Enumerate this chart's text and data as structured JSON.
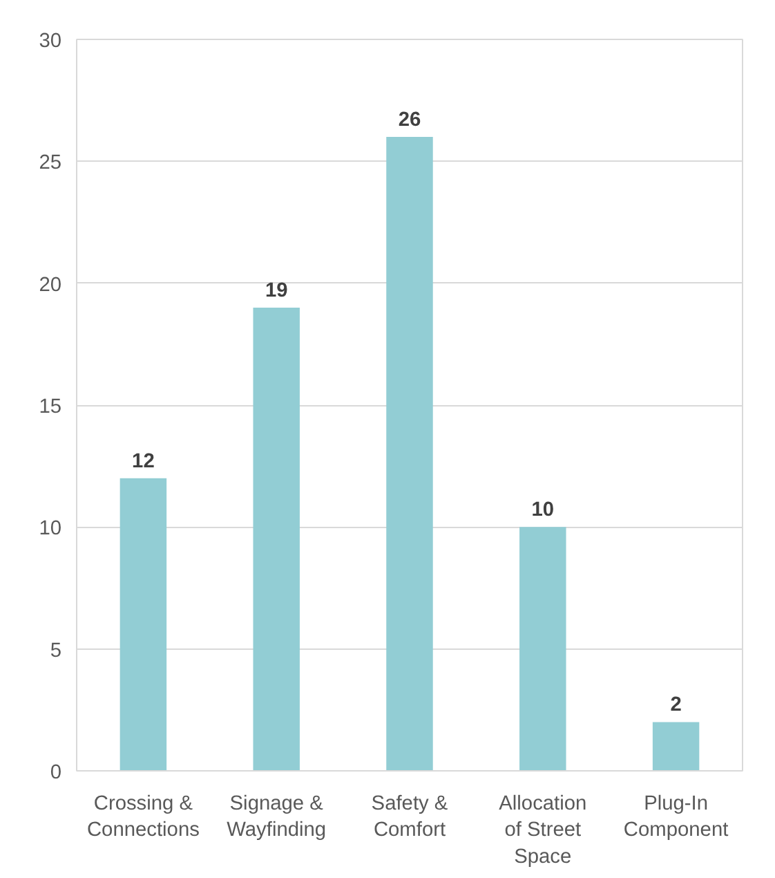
{
  "chart_data": {
    "type": "bar",
    "categories": [
      "Crossing & Connections",
      "Signage & Wayfinding",
      "Safety & Comfort",
      "Allocation of Street Space",
      "Plug-In Component"
    ],
    "values": [
      12,
      19,
      26,
      10,
      2
    ],
    "color": "#92cdd4",
    "ylim": [
      0,
      30
    ],
    "yticks": [
      0,
      5,
      10,
      15,
      20,
      25,
      30
    ],
    "grid": "y",
    "data_labels": true
  }
}
